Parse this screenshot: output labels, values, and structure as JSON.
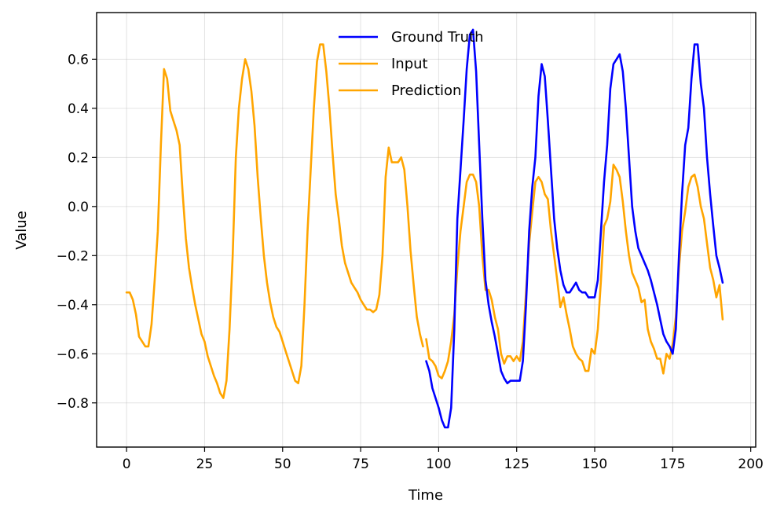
{
  "chart_data": {
    "type": "line",
    "title": "",
    "xlabel": "Time",
    "ylabel": "Value",
    "xlim": [
      -9.6,
      201.6
    ],
    "ylim": [
      -0.98,
      0.79
    ],
    "xticks": [
      0,
      25,
      50,
      75,
      100,
      125,
      150,
      175,
      200
    ],
    "yticks": [
      -0.8,
      -0.6,
      -0.4,
      -0.2,
      0.0,
      0.2,
      0.4,
      0.6
    ],
    "xtick_labels": [
      "0",
      "25",
      "50",
      "75",
      "100",
      "125",
      "150",
      "175",
      "200"
    ],
    "ytick_labels": [
      "−0.8",
      "−0.6",
      "−0.4",
      "−0.2",
      "0.0",
      "0.2",
      "0.4",
      "0.6"
    ],
    "grid": true,
    "legend_position": "top-center",
    "series": [
      {
        "name": "Ground Truth",
        "color": "#0000ff",
        "x": [
          96,
          97,
          98,
          99,
          100,
          101,
          102,
          103,
          104,
          105,
          106,
          107,
          108,
          109,
          110,
          111,
          112,
          113,
          114,
          115,
          116,
          117,
          118,
          119,
          120,
          121,
          122,
          123,
          124,
          125,
          126,
          127,
          128,
          129,
          130,
          131,
          132,
          133,
          134,
          135,
          136,
          137,
          138,
          139,
          140,
          141,
          142,
          143,
          144,
          145,
          146,
          147,
          148,
          149,
          150,
          151,
          152,
          153,
          154,
          155,
          156,
          157,
          158,
          159,
          160,
          161,
          162,
          163,
          164,
          165,
          166,
          167,
          168,
          169,
          170,
          171,
          172,
          173,
          174,
          175,
          176,
          177,
          178,
          179,
          180,
          181,
          182,
          183,
          184,
          185,
          186,
          187,
          188,
          189,
          190,
          191
        ],
        "y": [
          -0.63,
          -0.67,
          -0.74,
          -0.78,
          -0.82,
          -0.87,
          -0.9,
          -0.9,
          -0.82,
          -0.5,
          -0.05,
          0.15,
          0.35,
          0.56,
          0.7,
          0.72,
          0.55,
          0.25,
          -0.05,
          -0.3,
          -0.4,
          -0.47,
          -0.53,
          -0.6,
          -0.67,
          -0.7,
          -0.72,
          -0.71,
          -0.71,
          -0.71,
          -0.71,
          -0.63,
          -0.4,
          -0.1,
          0.08,
          0.2,
          0.45,
          0.58,
          0.53,
          0.35,
          0.15,
          -0.05,
          -0.17,
          -0.26,
          -0.32,
          -0.35,
          -0.35,
          -0.33,
          -0.31,
          -0.34,
          -0.35,
          -0.35,
          -0.37,
          -0.37,
          -0.37,
          -0.3,
          -0.1,
          0.1,
          0.25,
          0.48,
          0.58,
          0.6,
          0.62,
          0.55,
          0.4,
          0.2,
          0.0,
          -0.1,
          -0.17,
          -0.2,
          -0.23,
          -0.26,
          -0.3,
          -0.35,
          -0.4,
          -0.46,
          -0.52,
          -0.55,
          -0.57,
          -0.6,
          -0.5,
          -0.2,
          0.05,
          0.25,
          0.32,
          0.52,
          0.66,
          0.66,
          0.5,
          0.4,
          0.2,
          0.05,
          -0.08,
          -0.2,
          -0.25,
          -0.31
        ]
      },
      {
        "name": "Input",
        "color": "#ffa500",
        "x": [
          0,
          1,
          2,
          3,
          4,
          5,
          6,
          7,
          8,
          9,
          10,
          11,
          12,
          13,
          14,
          15,
          16,
          17,
          18,
          19,
          20,
          21,
          22,
          23,
          24,
          25,
          26,
          27,
          28,
          29,
          30,
          31,
          32,
          33,
          34,
          35,
          36,
          37,
          38,
          39,
          40,
          41,
          42,
          43,
          44,
          45,
          46,
          47,
          48,
          49,
          50,
          51,
          52,
          53,
          54,
          55,
          56,
          57,
          58,
          59,
          60,
          61,
          62,
          63,
          64,
          65,
          66,
          67,
          68,
          69,
          70,
          71,
          72,
          73,
          74,
          75,
          76,
          77,
          78,
          79,
          80,
          81,
          82,
          83,
          84,
          85,
          86,
          87,
          88,
          89,
          90,
          91,
          92,
          93,
          94,
          95
        ],
        "y": [
          -0.35,
          -0.35,
          -0.38,
          -0.44,
          -0.53,
          -0.55,
          -0.57,
          -0.57,
          -0.48,
          -0.3,
          -0.1,
          0.25,
          0.56,
          0.52,
          0.39,
          0.35,
          0.31,
          0.25,
          0.05,
          -0.13,
          -0.25,
          -0.33,
          -0.4,
          -0.46,
          -0.52,
          -0.55,
          -0.61,
          -0.65,
          -0.69,
          -0.72,
          -0.76,
          -0.78,
          -0.71,
          -0.5,
          -0.2,
          0.2,
          0.4,
          0.52,
          0.6,
          0.56,
          0.47,
          0.33,
          0.12,
          -0.05,
          -0.2,
          -0.31,
          -0.39,
          -0.45,
          -0.49,
          -0.51,
          -0.55,
          -0.59,
          -0.63,
          -0.67,
          -0.71,
          -0.72,
          -0.65,
          -0.4,
          -0.1,
          0.15,
          0.4,
          0.59,
          0.66,
          0.66,
          0.55,
          0.4,
          0.22,
          0.05,
          -0.05,
          -0.16,
          -0.23,
          -0.27,
          -0.31,
          -0.33,
          -0.35,
          -0.38,
          -0.4,
          -0.42,
          -0.42,
          -0.43,
          -0.42,
          -0.36,
          -0.2,
          0.12,
          0.24,
          0.18,
          0.18,
          0.18,
          0.2,
          0.15,
          0.0,
          -0.18,
          -0.32,
          -0.45,
          -0.52,
          -0.57
        ]
      },
      {
        "name": "Prediction",
        "color": "#ffa500",
        "x": [
          96,
          97,
          98,
          99,
          100,
          101,
          102,
          103,
          104,
          105,
          106,
          107,
          108,
          109,
          110,
          111,
          112,
          113,
          114,
          115,
          116,
          117,
          118,
          119,
          120,
          121,
          122,
          123,
          124,
          125,
          126,
          127,
          128,
          129,
          130,
          131,
          132,
          133,
          134,
          135,
          136,
          137,
          138,
          139,
          140,
          141,
          142,
          143,
          144,
          145,
          146,
          147,
          148,
          149,
          150,
          151,
          152,
          153,
          154,
          155,
          156,
          157,
          158,
          159,
          160,
          161,
          162,
          163,
          164,
          165,
          166,
          167,
          168,
          169,
          170,
          171,
          172,
          173,
          174,
          175,
          176,
          177,
          178,
          179,
          180,
          181,
          182,
          183,
          184,
          185,
          186,
          187,
          188,
          189,
          190,
          191
        ],
        "y": [
          -0.54,
          -0.62,
          -0.63,
          -0.65,
          -0.69,
          -0.7,
          -0.67,
          -0.63,
          -0.55,
          -0.44,
          -0.25,
          -0.1,
          0.0,
          0.1,
          0.13,
          0.13,
          0.1,
          0.0,
          -0.2,
          -0.34,
          -0.34,
          -0.38,
          -0.45,
          -0.5,
          -0.6,
          -0.64,
          -0.61,
          -0.61,
          -0.63,
          -0.61,
          -0.63,
          -0.55,
          -0.35,
          -0.15,
          -0.02,
          0.1,
          0.12,
          0.1,
          0.05,
          0.03,
          -0.1,
          -0.2,
          -0.3,
          -0.41,
          -0.37,
          -0.44,
          -0.5,
          -0.57,
          -0.6,
          -0.62,
          -0.63,
          -0.67,
          -0.67,
          -0.58,
          -0.6,
          -0.5,
          -0.3,
          -0.08,
          -0.05,
          0.02,
          0.17,
          0.15,
          0.12,
          0.02,
          -0.1,
          -0.2,
          -0.27,
          -0.3,
          -0.33,
          -0.39,
          -0.38,
          -0.5,
          -0.55,
          -0.58,
          -0.62,
          -0.62,
          -0.68,
          -0.6,
          -0.62,
          -0.56,
          -0.45,
          -0.25,
          -0.1,
          -0.02,
          0.08,
          0.12,
          0.13,
          0.08,
          0.0,
          -0.05,
          -0.15,
          -0.25,
          -0.3,
          -0.37,
          -0.32,
          -0.46
        ]
      }
    ]
  }
}
